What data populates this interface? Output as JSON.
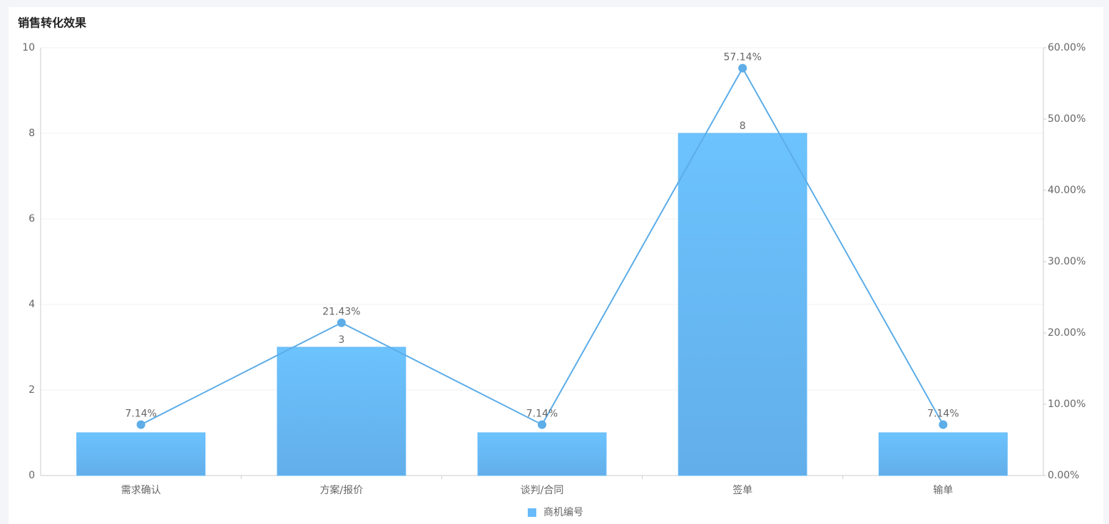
{
  "chart_data": {
    "type": "bar-line",
    "title": "销售转化效果",
    "categories": [
      "需求确认",
      "方案/报价",
      "谈判/合同",
      "签单",
      "输单"
    ],
    "series": [
      {
        "name": "商机编号",
        "type": "bar",
        "color": "#68bbf8",
        "values": [
          1,
          3,
          1,
          8,
          1
        ]
      },
      {
        "type": "line",
        "axis": "y2",
        "color": "#5dade8",
        "values": [
          7.14,
          21.43,
          7.14,
          57.14,
          7.14
        ],
        "value_labels": [
          "7.14%",
          "21.43%",
          "7.14%",
          "57.14%",
          "7.14%"
        ]
      }
    ],
    "ylim": [
      0,
      10
    ],
    "yticks": [
      0,
      2,
      4,
      6,
      8,
      10
    ],
    "y2lim": [
      0,
      60
    ],
    "y2ticks": [
      {
        "value": 0,
        "label": "0.00%"
      },
      {
        "value": 10,
        "label": "10.00%"
      },
      {
        "value": 20,
        "label": "20.00%"
      },
      {
        "value": 30,
        "label": "30.00%"
      },
      {
        "value": 40,
        "label": "40.00%"
      },
      {
        "value": 50,
        "label": "50.00%"
      },
      {
        "value": 60,
        "label": "60.00%"
      }
    ],
    "grid": true,
    "legend": "bottom"
  }
}
